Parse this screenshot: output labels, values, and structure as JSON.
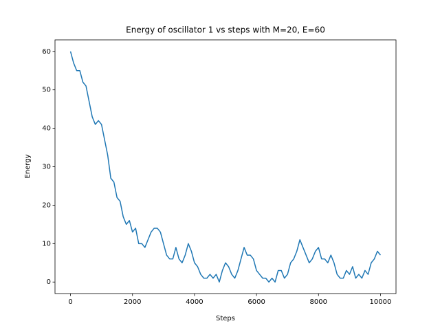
{
  "chart_data": {
    "type": "line",
    "title": "Energy of oscillator 1 vs steps with M=20, E=60",
    "xlabel": "Steps",
    "ylabel": "Energy",
    "x": [
      0,
      100,
      200,
      300,
      400,
      500,
      600,
      700,
      800,
      900,
      1000,
      1100,
      1200,
      1300,
      1400,
      1500,
      1600,
      1700,
      1800,
      1900,
      2000,
      2100,
      2200,
      2300,
      2400,
      2500,
      2600,
      2700,
      2800,
      2900,
      3000,
      3100,
      3200,
      3300,
      3400,
      3500,
      3600,
      3700,
      3800,
      3900,
      4000,
      4100,
      4200,
      4300,
      4400,
      4500,
      4600,
      4700,
      4800,
      4900,
      5000,
      5100,
      5200,
      5300,
      5400,
      5500,
      5600,
      5700,
      5800,
      5900,
      6000,
      6100,
      6200,
      6300,
      6400,
      6500,
      6600,
      6700,
      6800,
      6900,
      7000,
      7100,
      7200,
      7300,
      7400,
      7500,
      7600,
      7700,
      7800,
      7900,
      8000,
      8100,
      8200,
      8300,
      8400,
      8500,
      8600,
      8700,
      8800,
      8900,
      9000,
      9100,
      9200,
      9300,
      9400,
      9500,
      9600,
      9700,
      9800,
      9900,
      10000
    ],
    "series": [
      {
        "name": "Energy",
        "color": "#1f77b4",
        "values": [
          60,
          57,
          55,
          55,
          52,
          51,
          47,
          43,
          41,
          42,
          41,
          37,
          33,
          27,
          26,
          22,
          21,
          17,
          15,
          16,
          13,
          14,
          10,
          10,
          9,
          11,
          13,
          14,
          14,
          13,
          10,
          7,
          6,
          6,
          9,
          6,
          5,
          7,
          10,
          8,
          5,
          4,
          2,
          1,
          1,
          2,
          1,
          2,
          0,
          3,
          5,
          4,
          2,
          1,
          3,
          6,
          9,
          7,
          7,
          6,
          3,
          2,
          1,
          1,
          0,
          1,
          0,
          3,
          3,
          1,
          2,
          5,
          6,
          8,
          11,
          9,
          7,
          5,
          6,
          8,
          9,
          6,
          6,
          5,
          7,
          5,
          2,
          1,
          1,
          3,
          2,
          4,
          1,
          2,
          1,
          3,
          2,
          5,
          6,
          8,
          7
        ]
      }
    ],
    "xlim": [
      -500,
      10500
    ],
    "ylim": [
      -3,
      63
    ],
    "xticks": [
      0,
      2000,
      4000,
      6000,
      8000,
      10000
    ],
    "yticks": [
      0,
      10,
      20,
      30,
      40,
      50,
      60
    ],
    "grid": false
  }
}
